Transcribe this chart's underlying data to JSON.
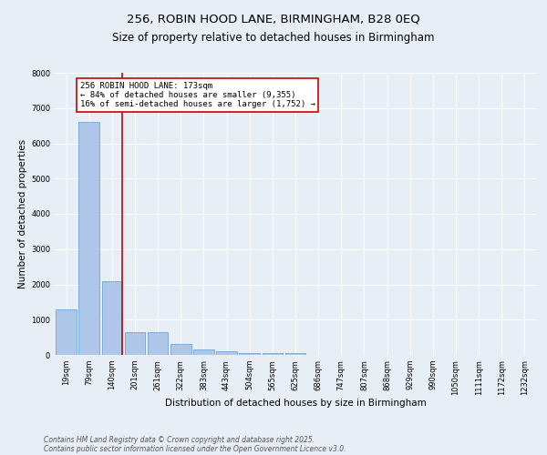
{
  "title_line1": "256, ROBIN HOOD LANE, BIRMINGHAM, B28 0EQ",
  "title_line2": "Size of property relative to detached houses in Birmingham",
  "xlabel": "Distribution of detached houses by size in Birmingham",
  "ylabel": "Number of detached properties",
  "categories": [
    "19sqm",
    "79sqm",
    "140sqm",
    "201sqm",
    "261sqm",
    "322sqm",
    "383sqm",
    "443sqm",
    "504sqm",
    "565sqm",
    "625sqm",
    "686sqm",
    "747sqm",
    "807sqm",
    "868sqm",
    "929sqm",
    "990sqm",
    "1050sqm",
    "1111sqm",
    "1172sqm",
    "1232sqm"
  ],
  "values": [
    1300,
    6600,
    2100,
    650,
    650,
    300,
    150,
    100,
    50,
    50,
    50,
    0,
    0,
    0,
    0,
    0,
    0,
    0,
    0,
    0,
    0
  ],
  "bar_color": "#aec6e8",
  "bar_edge_color": "#5b9bd5",
  "vline_x_index": 2,
  "vline_color": "#cc0000",
  "annotation_text": "256 ROBIN HOOD LANE: 173sqm\n← 84% of detached houses are smaller (9,355)\n16% of semi-detached houses are larger (1,752) →",
  "annotation_box_color": "#cc0000",
  "ylim": [
    0,
    8000
  ],
  "yticks": [
    0,
    1000,
    2000,
    3000,
    4000,
    5000,
    6000,
    7000,
    8000
  ],
  "footer_line1": "Contains HM Land Registry data © Crown copyright and database right 2025.",
  "footer_line2": "Contains public sector information licensed under the Open Government Licence v3.0.",
  "background_color": "#e8eef5",
  "plot_background_color": "#e8eef5",
  "title_fontsize": 9.5,
  "subtitle_fontsize": 8.5,
  "axis_label_fontsize": 7.5,
  "tick_fontsize": 6,
  "annotation_fontsize": 6.5,
  "footer_fontsize": 5.5
}
